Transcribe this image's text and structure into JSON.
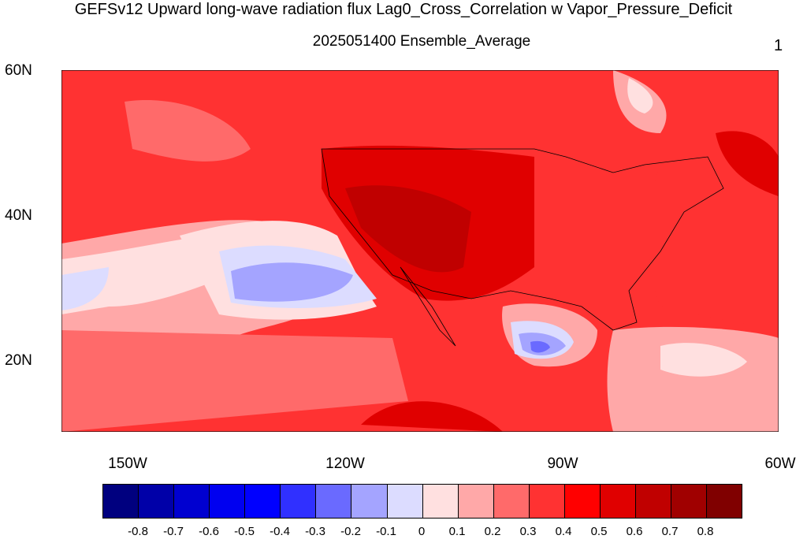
{
  "title": "GEFSv12 Upward long-wave radiation flux Lag0_Cross_Correlation w Vapor_Pressure_Deficit",
  "subtitle": "2025051400 Ensemble_Average",
  "panel_number": "1",
  "axes": {
    "lat_labels": [
      "60N",
      "40N",
      "20N"
    ],
    "lon_labels": [
      "150W",
      "120W",
      "90W",
      "60W"
    ]
  },
  "colorbar": {
    "colors": [
      "#00007f",
      "#0000a8",
      "#0000d0",
      "#0000f0",
      "#0000ff",
      "#3030ff",
      "#6a6aff",
      "#a4a4ff",
      "#dcdcff",
      "#ffe0e0",
      "#ffa8a8",
      "#ff6a6a",
      "#ff3232",
      "#ff0000",
      "#e00000",
      "#c00000",
      "#a00000",
      "#800000"
    ],
    "labels": [
      "-0.8",
      "-0.7",
      "-0.6",
      "-0.5",
      "-0.4",
      "-0.3",
      "-0.2",
      "-0.1",
      "0",
      "0.1",
      "0.2",
      "0.3",
      "0.4",
      "0.5",
      "0.6",
      "0.7",
      "0.8"
    ]
  }
}
